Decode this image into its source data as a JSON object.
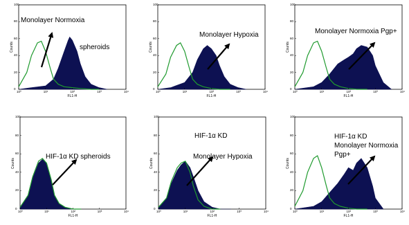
{
  "chart_data": [
    {
      "type": "area",
      "annotations": [
        "Monolayer Normoxia",
        "spheroids"
      ],
      "xlabel": "FL1-H",
      "ylabel": "Counts",
      "xscale": "log",
      "xlim": [
        1,
        10000
      ],
      "ylim": [
        0,
        100
      ],
      "x_ticks": [
        "10⁰",
        "10¹",
        "10²",
        "10³",
        "10⁴"
      ],
      "y_ticks": [
        "0",
        "20",
        "40",
        "60",
        "80",
        "100"
      ],
      "grid": false,
      "series": [
        {
          "x": [
            1,
            2,
            3,
            5,
            7,
            10,
            15,
            20,
            30,
            50,
            100,
            200,
            500,
            1000
          ],
          "y": [
            3,
            20,
            40,
            55,
            57,
            45,
            25,
            12,
            6,
            3,
            2,
            1,
            0,
            0
          ]
        },
        {
          "x": [
            1,
            3,
            10,
            20,
            30,
            50,
            70,
            80,
            100,
            150,
            200,
            300,
            500,
            1000,
            2000
          ],
          "y": [
            0,
            2,
            4,
            12,
            25,
            45,
            58,
            62,
            58,
            45,
            30,
            15,
            6,
            2,
            0
          ]
        }
      ],
      "colors": {
        "outline": "#1f9a2e",
        "fill": "#0d1152"
      }
    },
    {
      "type": "area",
      "annotations": [
        "Monolayer Hypoxia"
      ],
      "xlabel": "FL1-H",
      "ylabel": "Counts",
      "xscale": "log",
      "xlim": [
        1,
        10000
      ],
      "ylim": [
        0,
        100
      ],
      "x_ticks": [
        "10⁰",
        "10¹",
        "10²",
        "10³",
        "10⁴"
      ],
      "y_ticks": [
        "0",
        "20",
        "40",
        "60",
        "80",
        "100"
      ],
      "grid": false,
      "series": [
        {
          "x": [
            1,
            2,
            3,
            5,
            7,
            10,
            15,
            20,
            30,
            50,
            100,
            200,
            500
          ],
          "y": [
            3,
            18,
            38,
            52,
            55,
            45,
            25,
            12,
            6,
            3,
            1,
            0,
            0
          ]
        },
        {
          "x": [
            1,
            3,
            10,
            20,
            30,
            50,
            70,
            100,
            150,
            200,
            300,
            500,
            1000,
            2000
          ],
          "y": [
            0,
            2,
            8,
            20,
            35,
            48,
            52,
            48,
            40,
            28,
            15,
            6,
            2,
            0
          ]
        }
      ],
      "colors": {
        "outline": "#1f9a2e",
        "fill": "#0d1152"
      }
    },
    {
      "type": "area",
      "annotations": [
        "Monolayer Normoxia Pgp+"
      ],
      "xlabel": "FL1-H",
      "ylabel": "Counts",
      "xscale": "log",
      "xlim": [
        1,
        10000
      ],
      "ylim": [
        0,
        100
      ],
      "x_ticks": [
        "10⁰",
        "10¹",
        "10²",
        "10³",
        "10⁴"
      ],
      "y_ticks": [
        "0",
        "20",
        "40",
        "60",
        "80",
        "100"
      ],
      "grid": false,
      "series": [
        {
          "x": [
            1,
            2,
            3,
            5,
            7,
            10,
            15,
            20,
            30,
            50,
            100,
            200,
            500
          ],
          "y": [
            3,
            20,
            40,
            55,
            57,
            45,
            25,
            12,
            6,
            3,
            1,
            0,
            0
          ]
        },
        {
          "x": [
            1,
            5,
            10,
            20,
            40,
            70,
            100,
            150,
            200,
            300,
            500,
            800,
            1000,
            2000,
            4000
          ],
          "y": [
            0,
            3,
            8,
            18,
            30,
            35,
            38,
            42,
            48,
            52,
            50,
            40,
            28,
            8,
            0
          ]
        }
      ],
      "colors": {
        "outline": "#1f9a2e",
        "fill": "#0d1152"
      }
    },
    {
      "type": "area",
      "annotations": [
        "HIF-1α KD spheroids"
      ],
      "xlabel": "FL1-H",
      "ylabel": "Counts",
      "xscale": "log",
      "xlim": [
        1,
        10000
      ],
      "ylim": [
        0,
        100
      ],
      "x_ticks": [
        "10⁰",
        "10¹",
        "10²",
        "10³",
        "10⁴"
      ],
      "y_ticks": [
        "0",
        "20",
        "40",
        "60",
        "80",
        "100"
      ],
      "grid": false,
      "series": [
        {
          "x": [
            1,
            2,
            3,
            5,
            7,
            10,
            15,
            20,
            30,
            50,
            100,
            200
          ],
          "y": [
            2,
            15,
            35,
            52,
            55,
            50,
            32,
            15,
            6,
            2,
            0,
            0
          ]
        },
        {
          "x": [
            1,
            2,
            3,
            5,
            7,
            10,
            15,
            20,
            30,
            50,
            100,
            200
          ],
          "y": [
            2,
            14,
            34,
            50,
            54,
            50,
            32,
            15,
            6,
            2,
            0,
            0
          ]
        }
      ],
      "colors": {
        "outline": "#1f9a2e",
        "fill": "#0d1152"
      }
    },
    {
      "type": "area",
      "annotations": [
        "HIF-1α KD",
        "Monolayer Hypoxia"
      ],
      "xlabel": "FL1-H",
      "ylabel": "Counts",
      "xscale": "log",
      "xlim": [
        1,
        10000
      ],
      "ylim": [
        0,
        100
      ],
      "x_ticks": [
        "10⁰",
        "10¹",
        "10²",
        "10³",
        "10⁴"
      ],
      "y_ticks": [
        "0",
        "20",
        "40",
        "60",
        "80",
        "100"
      ],
      "grid": false,
      "series": [
        {
          "x": [
            1,
            2,
            3,
            5,
            7,
            10,
            15,
            20,
            30,
            50,
            100,
            200
          ],
          "y": [
            2,
            12,
            30,
            45,
            50,
            52,
            40,
            25,
            10,
            3,
            0,
            0
          ]
        },
        {
          "x": [
            1,
            2,
            3,
            5,
            7,
            10,
            15,
            20,
            30,
            50,
            100,
            200,
            500
          ],
          "y": [
            2,
            12,
            28,
            42,
            48,
            52,
            45,
            35,
            20,
            8,
            2,
            0,
            0
          ]
        }
      ],
      "colors": {
        "outline": "#1f9a2e",
        "fill": "#0d1152"
      }
    },
    {
      "type": "area",
      "annotations": [
        "HIF-1α KD",
        "Monolayer Normoxia",
        "Pgp+"
      ],
      "xlabel": "FL1-H",
      "ylabel": "Counts",
      "xscale": "log",
      "xlim": [
        1,
        10000
      ],
      "ylim": [
        0,
        100
      ],
      "x_ticks": [
        "10⁰",
        "10¹",
        "10²",
        "10³",
        "10⁴"
      ],
      "y_ticks": [
        "0",
        "20",
        "40",
        "60",
        "80",
        "100"
      ],
      "grid": false,
      "series": [
        {
          "x": [
            1,
            2,
            3,
            5,
            7,
            10,
            15,
            20,
            30,
            50,
            100,
            200,
            500
          ],
          "y": [
            3,
            20,
            40,
            55,
            58,
            45,
            25,
            12,
            6,
            3,
            1,
            0,
            0
          ]
        },
        {
          "x": [
            1,
            5,
            10,
            20,
            40,
            70,
            100,
            150,
            200,
            300,
            500,
            800,
            1000,
            2000
          ],
          "y": [
            0,
            3,
            8,
            18,
            28,
            38,
            45,
            42,
            50,
            55,
            45,
            25,
            12,
            0
          ]
        }
      ],
      "colors": {
        "outline": "#1f9a2e",
        "fill": "#0d1152"
      }
    }
  ]
}
